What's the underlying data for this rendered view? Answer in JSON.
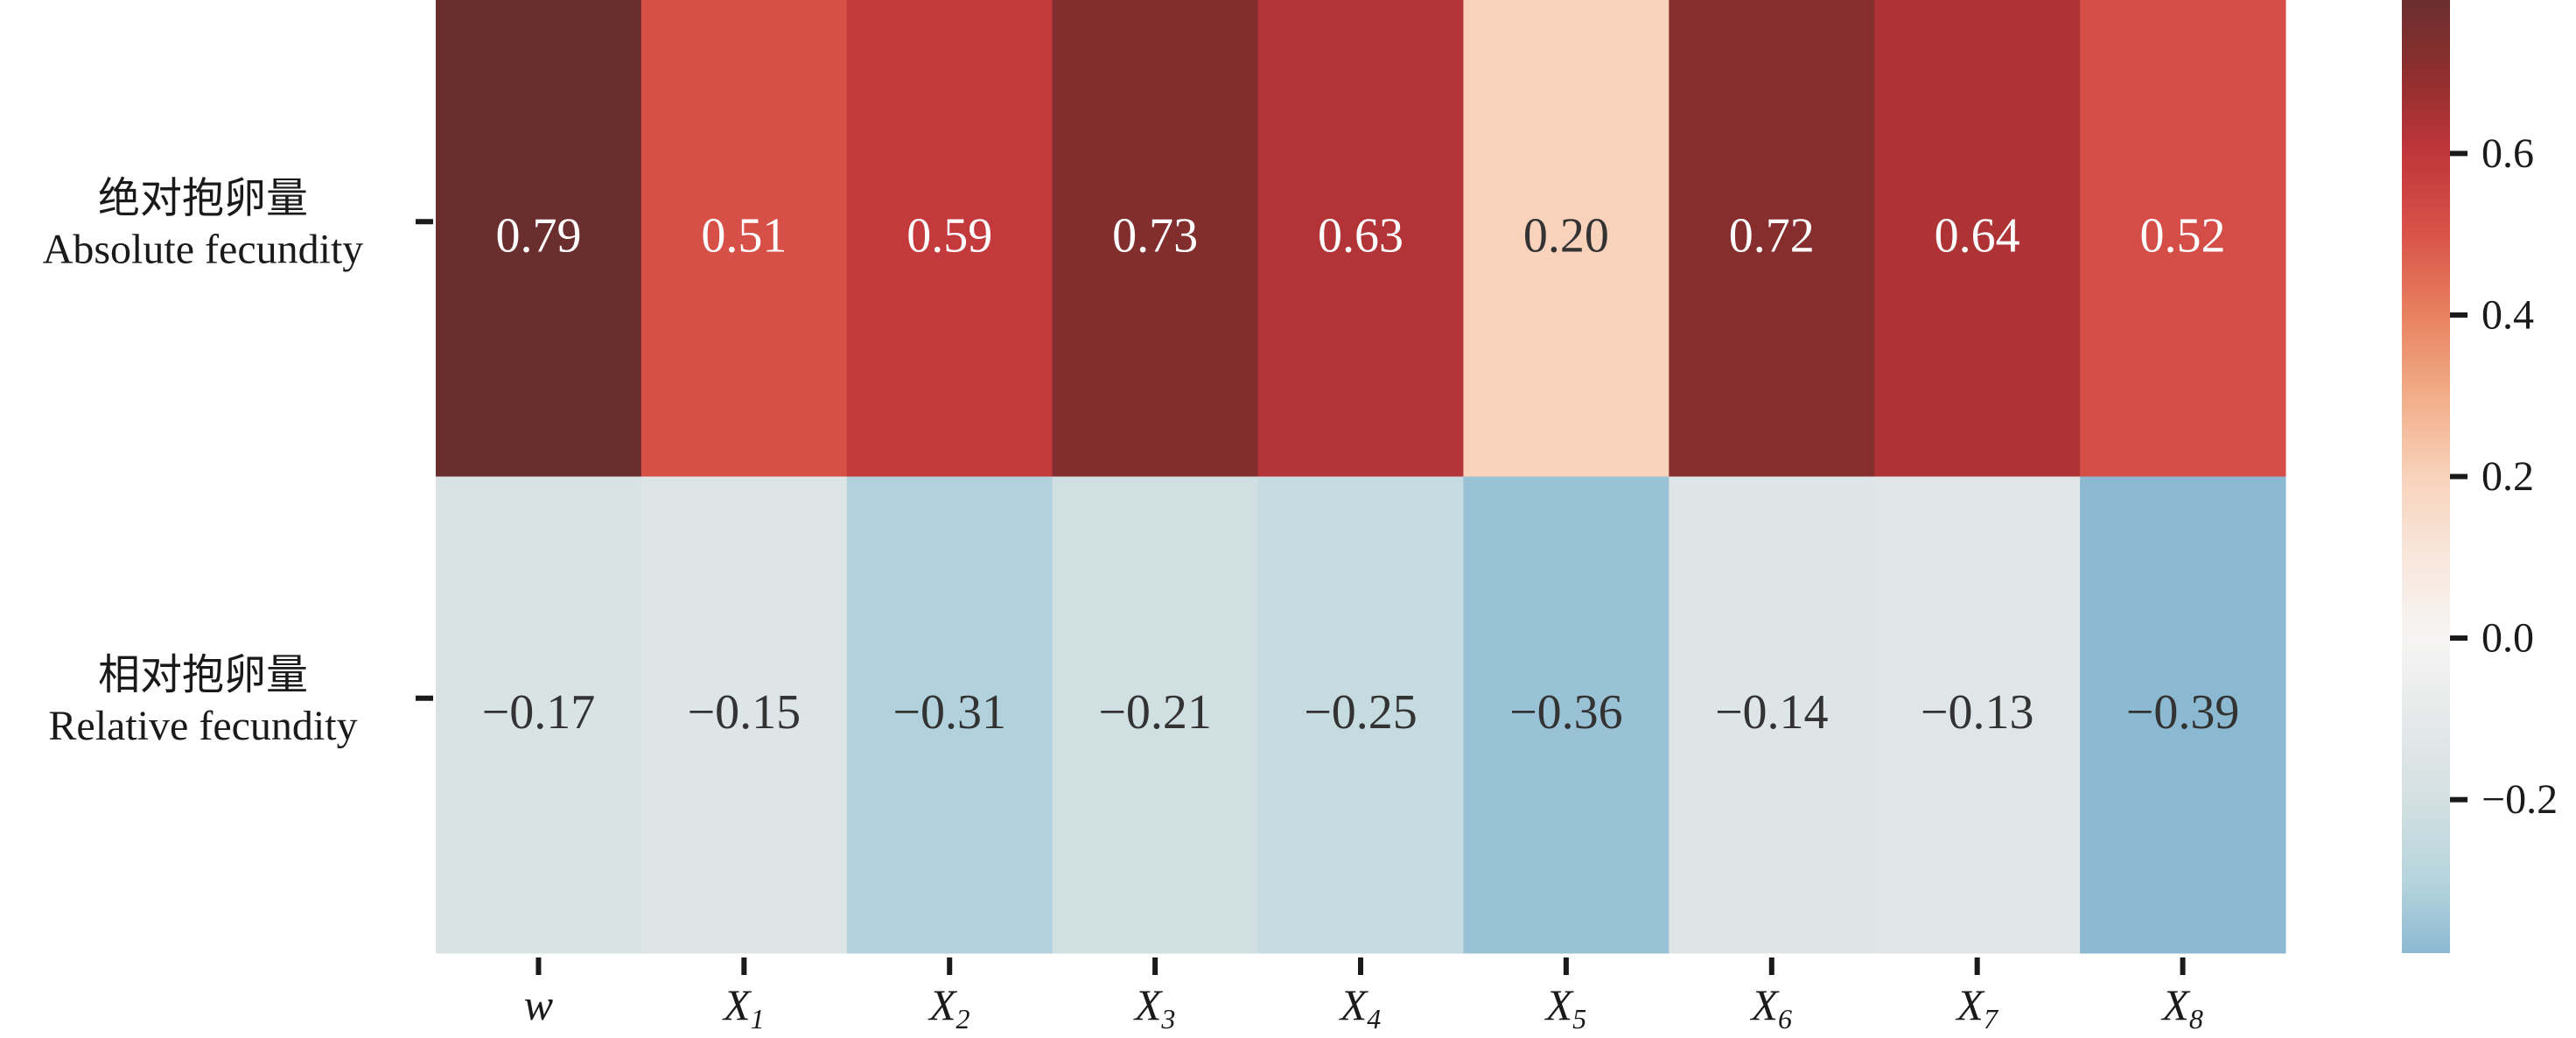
{
  "chart_data": {
    "type": "heatmap",
    "title": "",
    "rows": [
      {
        "zh": "绝对抱卵量",
        "en": "Absolute fecundity"
      },
      {
        "zh": "相对抱卵量",
        "en": "Relative fecundity"
      }
    ],
    "columns": [
      {
        "base": "w",
        "sub": ""
      },
      {
        "base": "X",
        "sub": "1"
      },
      {
        "base": "X",
        "sub": "2"
      },
      {
        "base": "X",
        "sub": "3"
      },
      {
        "base": "X",
        "sub": "4"
      },
      {
        "base": "X",
        "sub": "5"
      },
      {
        "base": "X",
        "sub": "6"
      },
      {
        "base": "X",
        "sub": "7"
      },
      {
        "base": "X",
        "sub": "8"
      }
    ],
    "values": [
      [
        0.79,
        0.51,
        0.59,
        0.73,
        0.63,
        0.2,
        0.72,
        0.64,
        0.52
      ],
      [
        -0.17,
        -0.15,
        -0.31,
        -0.21,
        -0.25,
        -0.36,
        -0.14,
        -0.13,
        -0.39
      ]
    ],
    "value_labels": [
      [
        "0.79",
        "0.51",
        "0.59",
        "0.73",
        "0.63",
        "0.20",
        "0.72",
        "0.64",
        "0.52"
      ],
      [
        "−0.17",
        "−0.15",
        "−0.31",
        "−0.21",
        "−0.25",
        "−0.36",
        "−0.14",
        "−0.13",
        "−0.39"
      ]
    ],
    "colorbar": {
      "range": [
        -0.39,
        0.79
      ],
      "ticks": [
        0.6,
        0.4,
        0.2,
        0.0,
        -0.2
      ],
      "tick_labels": [
        "0.6",
        "0.4",
        "0.2",
        "0.0",
        "−0.2"
      ],
      "colormap_stops": [
        [
          0.79,
          "#6b2e2e"
        ],
        [
          0.7,
          "#8e2e2e"
        ],
        [
          0.6,
          "#c1363a"
        ],
        [
          0.5,
          "#d9534a"
        ],
        [
          0.4,
          "#e8825f"
        ],
        [
          0.3,
          "#f1ad88"
        ],
        [
          0.2,
          "#f8d2bb"
        ],
        [
          0.1,
          "#f8e7dc"
        ],
        [
          0.0,
          "#f6f5f4"
        ],
        [
          -0.1,
          "#e6e9e9"
        ],
        [
          -0.2,
          "#d3e0e2"
        ],
        [
          -0.3,
          "#b6d5dd"
        ],
        [
          -0.39,
          "#8cb9d2"
        ]
      ]
    }
  }
}
